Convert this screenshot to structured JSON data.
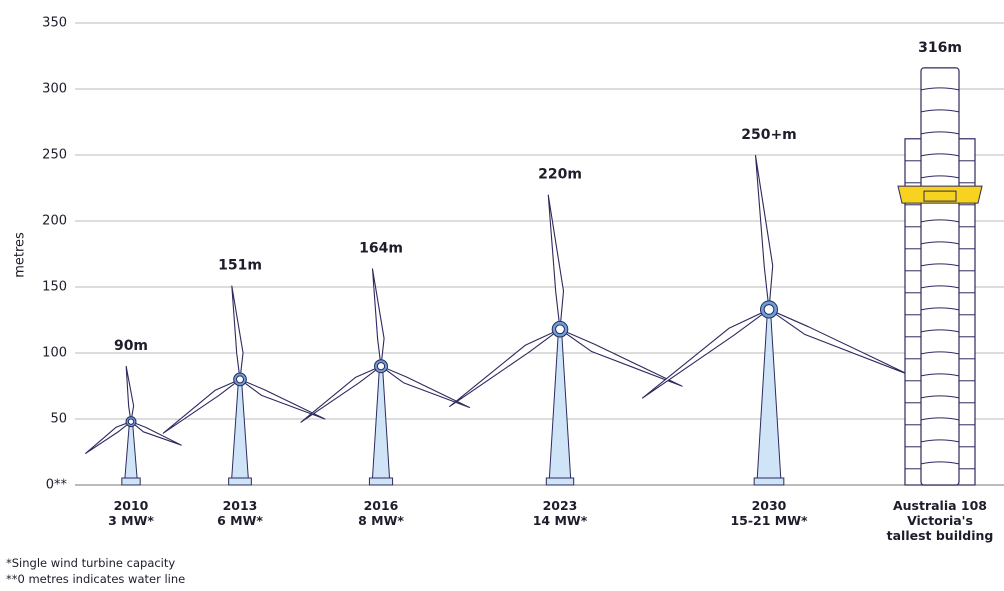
{
  "chart_data": {
    "type": "pictogram",
    "y_label": "metres",
    "categories": [
      "2010",
      "2013",
      "2016",
      "2023",
      "2030",
      "Australia 108"
    ],
    "category_notes": [
      "3 MW*",
      "6 MW*",
      "8 MW*",
      "14 MW*",
      "15-21 MW*",
      "Victoria's tallest building"
    ],
    "values": [
      90,
      151,
      164,
      220,
      250,
      316
    ],
    "value_labels": [
      "90m",
      "151m",
      "164m",
      "220m",
      "250+m",
      "316m"
    ],
    "hub_heights": [
      48,
      80,
      90,
      118,
      133,
      null
    ],
    "ylim": [
      0,
      350
    ],
    "yticks": [
      {
        "value": 0,
        "label": "0**"
      },
      50,
      100,
      150,
      200,
      250,
      300,
      350
    ],
    "grid": true,
    "footnotes": [
      "*Single wind turbine capacity",
      "**0 metres indicates water line"
    ]
  }
}
